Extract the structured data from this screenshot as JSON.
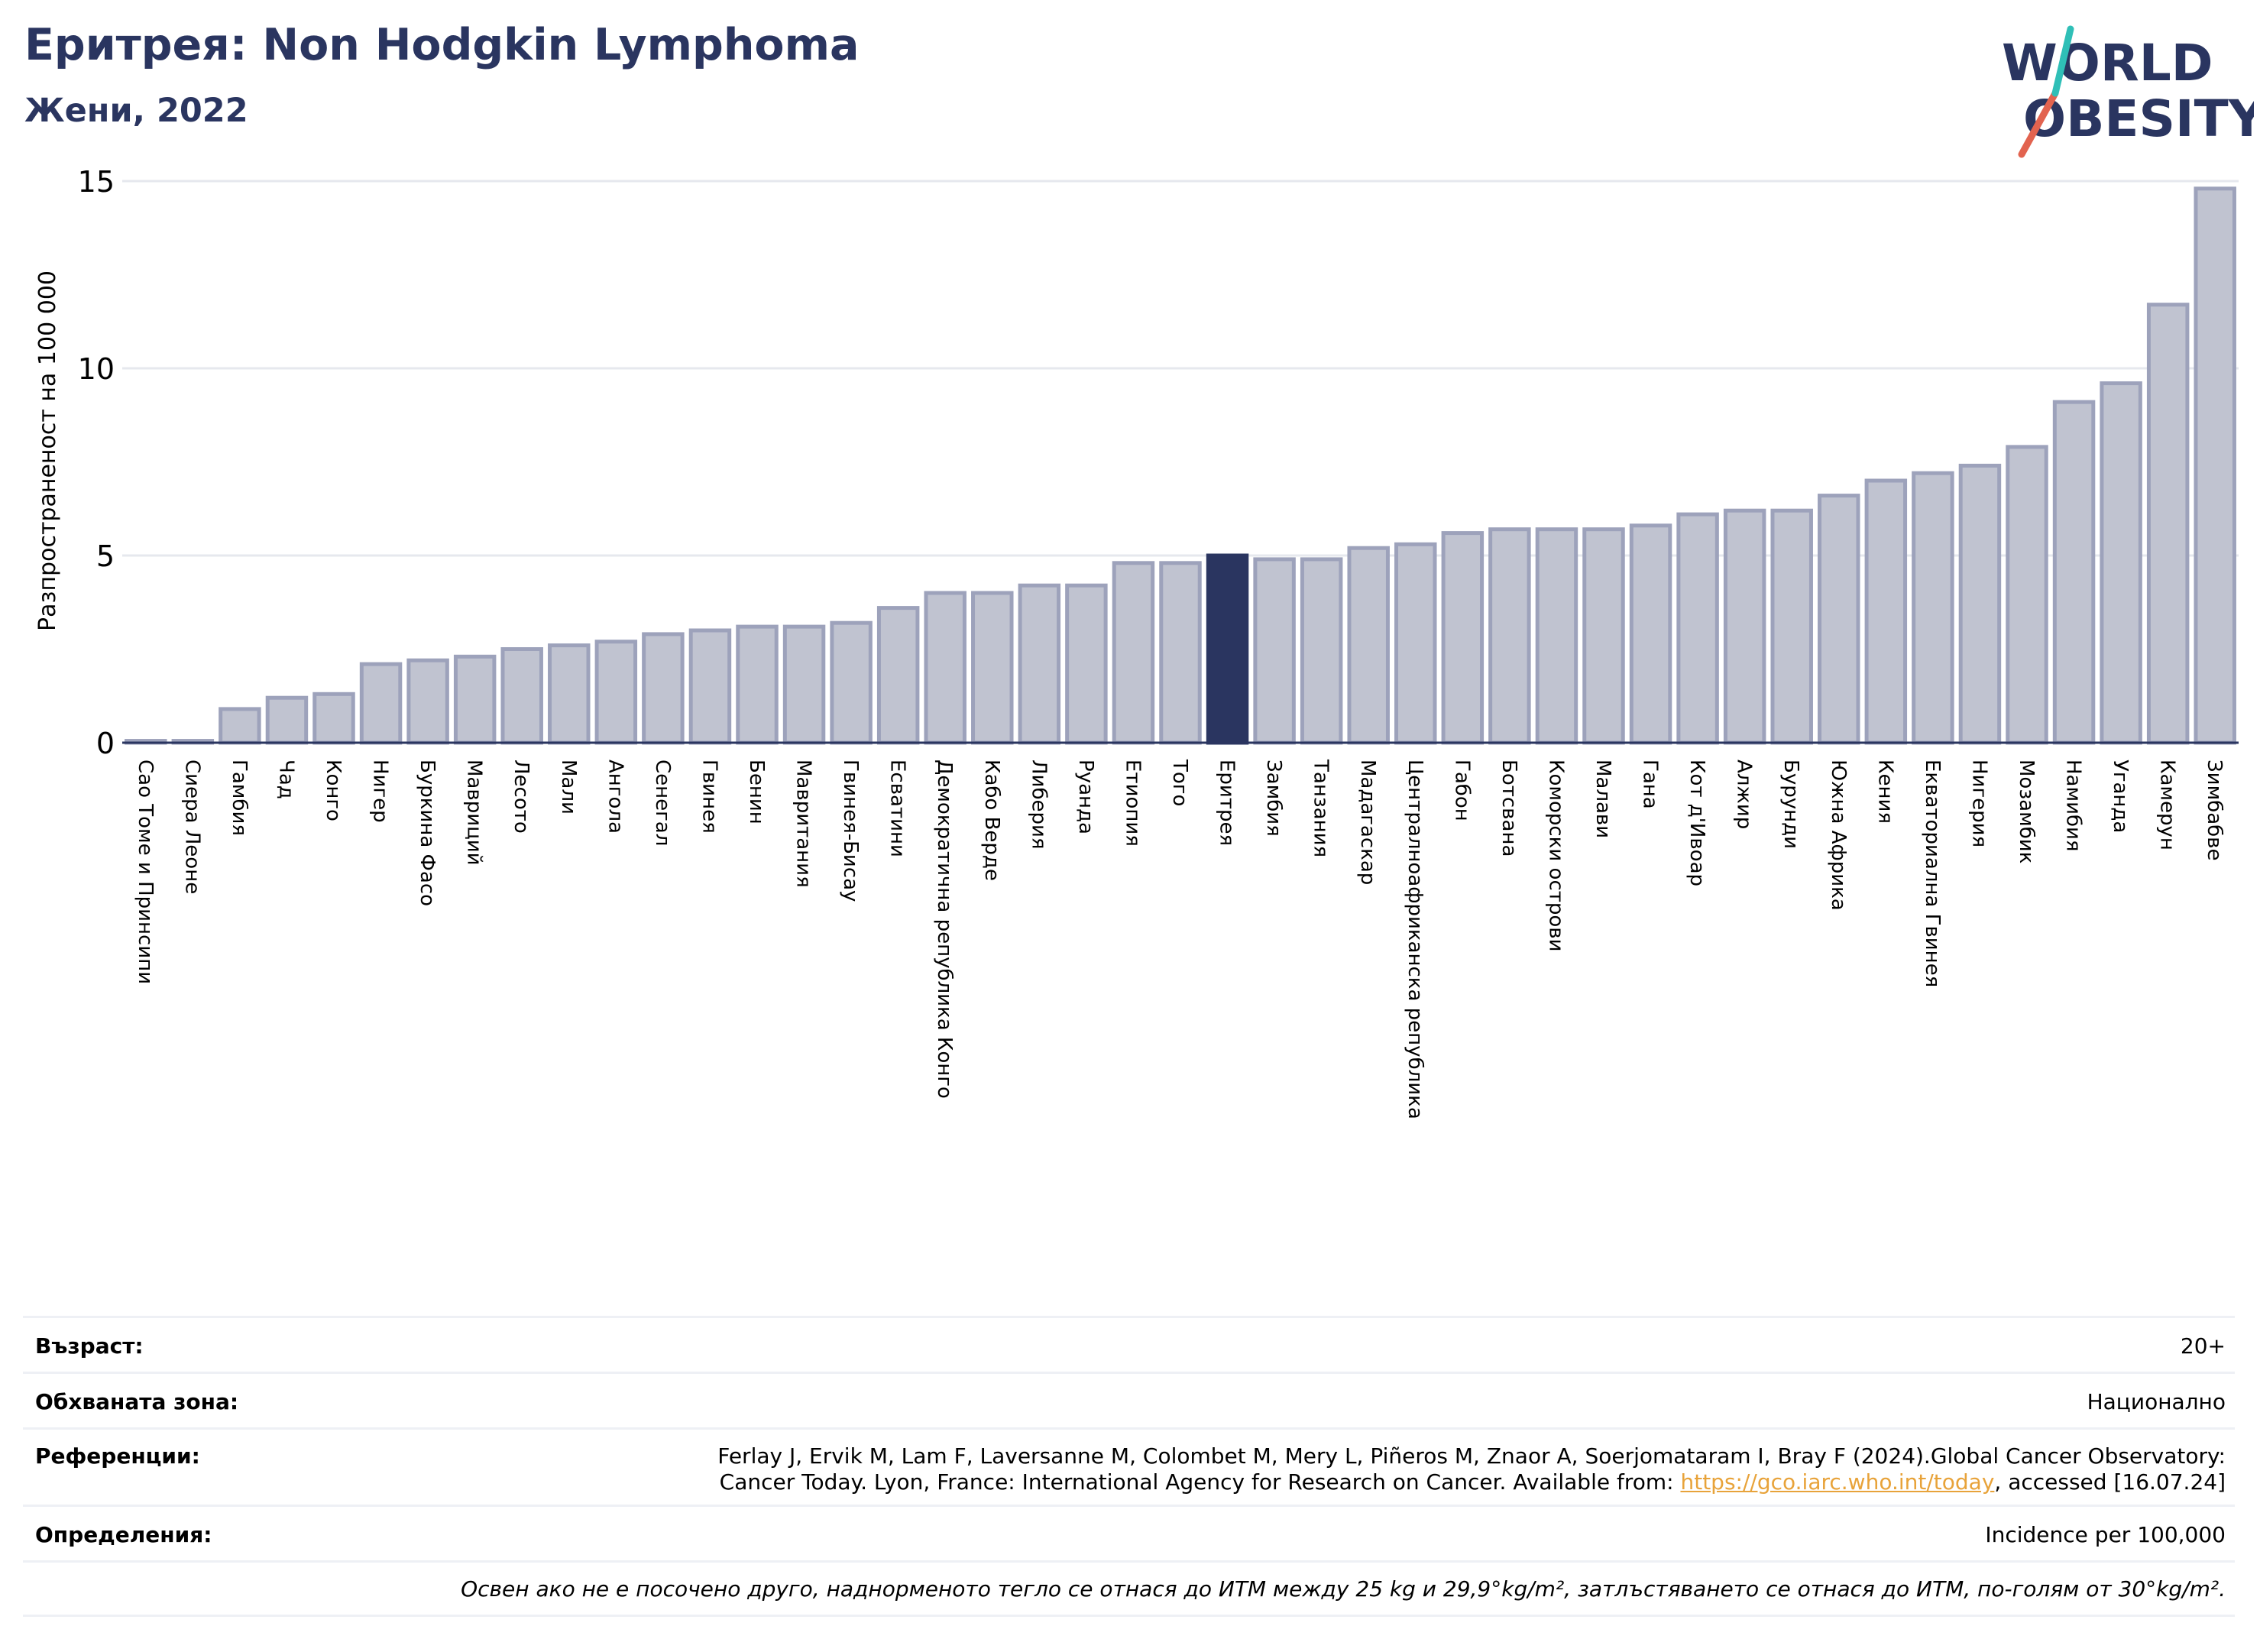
{
  "header": {
    "title": "Еритрея: Non Hodgkin Lymphoma",
    "subtitle": "Жени, 2022"
  },
  "logo": {
    "line1": "WORLD",
    "line2": "OBESITY"
  },
  "colors": {
    "highlight": "#2a3560",
    "bar": "#c0c3d0",
    "bar_edge": "#9da2bb",
    "grid": "#e6e8ee",
    "title": "#2a3560"
  },
  "chart_data": {
    "type": "bar",
    "ylabel": "Разпространеност  на 100 000",
    "ylim": [
      0,
      15
    ],
    "yticks": [
      0,
      5,
      10,
      15
    ],
    "grid": true,
    "highlight": "Еритрея",
    "categories": [
      "Сао Томе и Принсипи",
      "Сиера Леоне",
      "Гамбия",
      "Чад",
      "Конго",
      "Нигер",
      "Буркина Фасо",
      "Мавриций",
      "Лесото",
      "Мали",
      "Ангола",
      "Сенегал",
      "Гвинея",
      "Бенин",
      "Мавритания",
      "Гвинея-Бисау",
      "Есватини",
      "Демократична република Конго",
      "Кабо Верде",
      "Либерия",
      "Руанда",
      "Етиопия",
      "Того",
      "Еритрея",
      "Замбия",
      "Танзания",
      "Мадагаскар",
      "Централноафриканска република",
      "Габон",
      "Ботсвана",
      "Коморски острови",
      "Малави",
      "Гана",
      "Кот д'Ивоар",
      "Алжир",
      "Бурунди",
      "Южна Африка",
      "Кения",
      "Екваториална Гвинея",
      "Нигерия",
      "Мозамбик",
      "Намибия",
      "Уганда",
      "Камерун",
      "Зимбабве"
    ],
    "values": [
      0.05,
      0.05,
      0.9,
      1.2,
      1.3,
      2.1,
      2.2,
      2.3,
      2.5,
      2.6,
      2.7,
      2.9,
      3.0,
      3.1,
      3.1,
      3.2,
      3.6,
      4.0,
      4.0,
      4.2,
      4.2,
      4.8,
      4.8,
      5.0,
      4.9,
      4.9,
      5.2,
      5.3,
      5.6,
      5.7,
      5.7,
      5.7,
      5.8,
      6.1,
      6.2,
      6.2,
      6.6,
      7.0,
      7.2,
      7.4,
      7.9,
      9.1,
      9.6,
      11.7,
      14.8
    ]
  },
  "info": {
    "age_label": "Възраст:",
    "age_value": "20+",
    "coverage_label": "Обхваната зона:",
    "coverage_value": "Национално",
    "refs_label": "Референции:",
    "refs_line1": "Ferlay J, Ervik M, Lam F, Laversanne M, Colombet M, Mery L, Piñeros M, Znaor A, Soerjomataram I, Bray F (2024).Global Cancer Observatory:",
    "refs_line2_pre": "Cancer Today. Lyon, France: International Agency for Research on Cancer. Available from: ",
    "refs_link": "https://gco.iarc.who.int/today",
    "refs_line2_post": ", accessed [16.07.24]",
    "defs_label": "Определения:",
    "defs_value": "Incidence per 100,000",
    "note": "Освен ако не е посочено друго, наднорменото тегло се отнася до ИТМ между 25 kg и 29,9°kg/m², затлъстяването се отнася до ИТМ, по-голям от 30°kg/m²."
  }
}
